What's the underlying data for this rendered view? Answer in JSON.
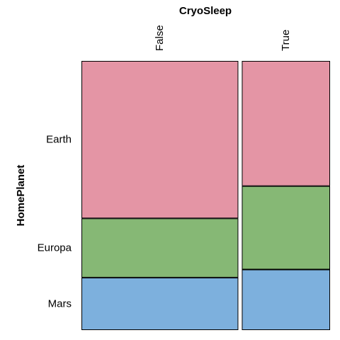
{
  "chart_data": {
    "type": "mosaic",
    "x_variable": "CryoSleep",
    "y_variable": "HomePlanet",
    "x_categories": [
      "False",
      "True"
    ],
    "y_categories": [
      "Earth",
      "Europa",
      "Mars"
    ],
    "colors": {
      "Earth": "#e495a5",
      "Europa": "#86b875",
      "Mars": "#7db0dd"
    },
    "column_share": [
      0.64,
      0.36
    ],
    "cells": [
      {
        "x": "False",
        "y": "Earth",
        "share": 0.585
      },
      {
        "x": "False",
        "y": "Europa",
        "share": 0.22
      },
      {
        "x": "False",
        "y": "Mars",
        "share": 0.195
      },
      {
        "x": "True",
        "y": "Earth",
        "share": 0.465
      },
      {
        "x": "True",
        "y": "Europa",
        "share": 0.31
      },
      {
        "x": "True",
        "y": "Mars",
        "share": 0.225
      }
    ]
  }
}
